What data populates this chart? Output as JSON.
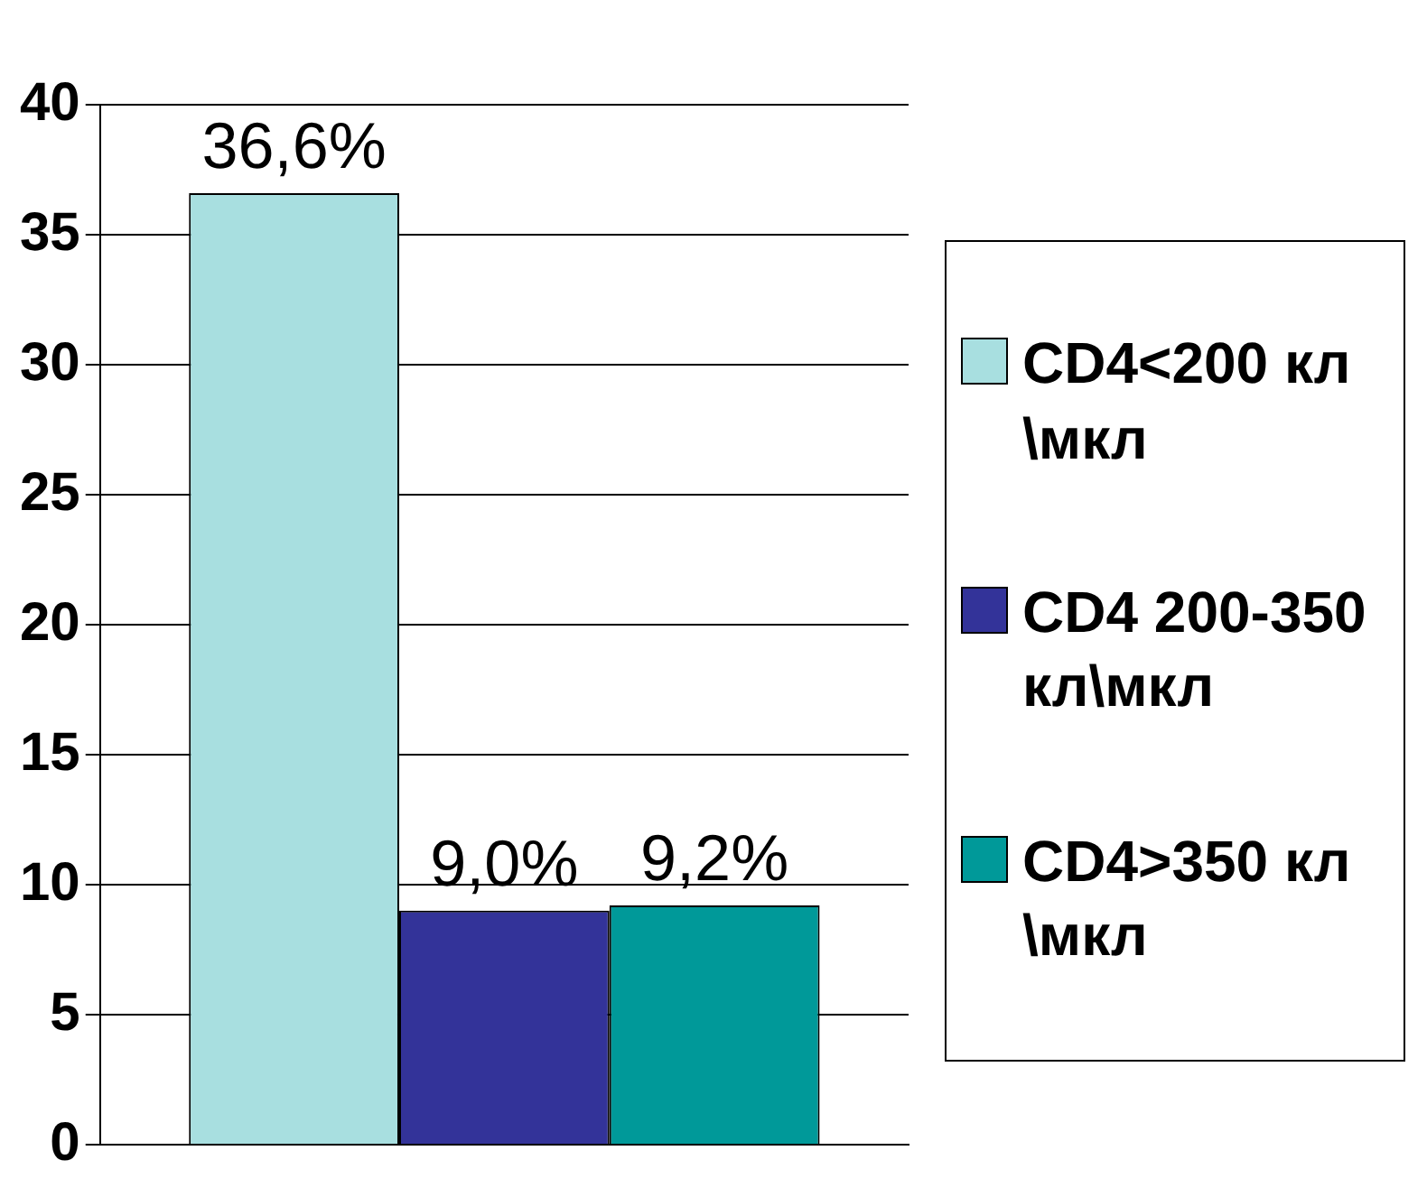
{
  "chart_data": {
    "type": "bar",
    "categories": [
      null
    ],
    "series": [
      {
        "name": "CD4<200 кл\\мкл",
        "color": "#a8dfe0",
        "values": [
          36.6
        ],
        "value_labels": [
          "36,6%"
        ]
      },
      {
        "name": "CD4 200-350кл\\мкл",
        "color": "#333399",
        "values": [
          9.0
        ],
        "value_labels": [
          "9,0%"
        ]
      },
      {
        "name": "CD4>350 кл\\мкл",
        "color": "#009999",
        "values": [
          9.2
        ],
        "value_labels": [
          "9,2%"
        ]
      }
    ],
    "ylim": [
      0,
      40
    ],
    "yticks": [
      0,
      5,
      10,
      15,
      20,
      25,
      30,
      35,
      40
    ],
    "grid": "y",
    "legend": "right"
  }
}
